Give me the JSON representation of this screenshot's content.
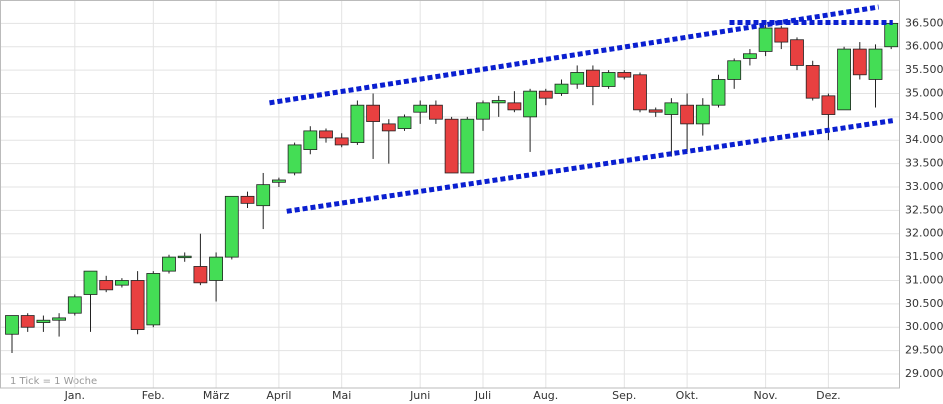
{
  "chart_data": {
    "type": "candlestick",
    "note": "1 Tick = 1 Woche",
    "categories": [
      null,
      null,
      null,
      null,
      "Jan.",
      null,
      null,
      null,
      null,
      "Feb.",
      null,
      null,
      null,
      "März",
      null,
      null,
      null,
      "April",
      null,
      null,
      null,
      "Mai",
      null,
      null,
      null,
      null,
      "Juni",
      null,
      null,
      null,
      "Juli",
      null,
      null,
      null,
      "Aug.",
      null,
      null,
      null,
      null,
      "Sep.",
      null,
      null,
      null,
      "Okt.",
      null,
      null,
      null,
      null,
      "Nov.",
      null,
      null,
      null,
      "Dez.",
      null,
      null,
      null,
      null
    ],
    "series": [
      {
        "name": "open",
        "values": [
          29850,
          30250,
          30100,
          30150,
          30300,
          30700,
          31000,
          30900,
          31000,
          30050,
          31200,
          31500,
          31300,
          31000,
          31500,
          32800,
          32600,
          33100,
          33300,
          33800,
          34200,
          34050,
          33950,
          34750,
          34350,
          34250,
          34600,
          34750,
          34450,
          33300,
          34450,
          34800,
          34800,
          34500,
          35050,
          35000,
          35200,
          35500,
          35150,
          35450,
          35400,
          34650,
          34550,
          34750,
          34350,
          34750,
          35300,
          35750,
          35900,
          36400,
          36150,
          35600,
          34950,
          34650,
          35950,
          35300,
          36000
        ]
      },
      {
        "name": "high",
        "values": [
          30250,
          30300,
          30250,
          30300,
          30700,
          31200,
          31100,
          31050,
          31200,
          31200,
          31550,
          31600,
          32000,
          31600,
          32800,
          32900,
          33300,
          33200,
          33950,
          34300,
          34250,
          34150,
          34850,
          35000,
          34450,
          34550,
          34850,
          34850,
          34500,
          34500,
          34850,
          34950,
          35050,
          35100,
          35100,
          35300,
          35600,
          35600,
          35500,
          35500,
          35450,
          34700,
          34900,
          35000,
          34900,
          35400,
          35750,
          35950,
          36500,
          36450,
          36200,
          35700,
          35000,
          36000,
          36100,
          36050,
          36500
        ]
      },
      {
        "name": "low",
        "values": [
          29450,
          29900,
          29900,
          29800,
          30250,
          29900,
          30750,
          30850,
          29850,
          30000,
          31150,
          31400,
          30900,
          30550,
          31450,
          32550,
          32100,
          33000,
          33250,
          33700,
          33950,
          33850,
          33900,
          33600,
          33500,
          34200,
          34350,
          34350,
          33300,
          33300,
          34200,
          34500,
          34600,
          33750,
          34750,
          34950,
          35100,
          34750,
          35100,
          35300,
          34600,
          34500,
          33650,
          33750,
          34100,
          34700,
          35100,
          35600,
          35800,
          35950,
          35500,
          34850,
          34000,
          34650,
          35300,
          34700,
          35950
        ]
      },
      {
        "name": "close",
        "values": [
          30250,
          30000,
          30150,
          30200,
          30650,
          31200,
          30800,
          31000,
          29950,
          31150,
          31500,
          31520,
          30950,
          31500,
          32800,
          32650,
          33050,
          33150,
          33900,
          34200,
          34050,
          33900,
          34750,
          34400,
          34200,
          34500,
          34750,
          34450,
          33300,
          34450,
          34800,
          34850,
          34650,
          35050,
          34900,
          35200,
          35450,
          35150,
          35450,
          35350,
          34650,
          34600,
          34800,
          34350,
          34750,
          35300,
          35700,
          35850,
          36400,
          36100,
          35600,
          34900,
          34550,
          35950,
          35400,
          35950,
          36500
        ]
      }
    ],
    "up_color": "#44dd55",
    "down_color": "#e84040",
    "trendlines": [
      {
        "x": [
          16.4,
          55.2
        ],
        "values": [
          34800,
          36850
        ],
        "color": "#0a1fd0"
      },
      {
        "x": [
          17.5,
          56.1
        ],
        "values": [
          32480,
          34420
        ],
        "color": "#0a1fd0"
      },
      {
        "x": [
          45.7,
          56.1
        ],
        "values": [
          36520,
          36520
        ],
        "color": "#0a1fd0"
      }
    ],
    "ylim": [
      28700,
      37000
    ],
    "yticks": [
      {
        "value": 29000,
        "label": "29.000"
      },
      {
        "value": 29500,
        "label": "29.500"
      },
      {
        "value": 30000,
        "label": "30.000"
      },
      {
        "value": 30500,
        "label": "30.500"
      },
      {
        "value": 31000,
        "label": "31.000"
      },
      {
        "value": 31500,
        "label": "31.500"
      },
      {
        "value": 32000,
        "label": "32.000"
      },
      {
        "value": 32500,
        "label": "32.500"
      },
      {
        "value": 33000,
        "label": "33.000"
      },
      {
        "value": 33500,
        "label": "33.500"
      },
      {
        "value": 34000,
        "label": "34.000"
      },
      {
        "value": 34500,
        "label": "34.500"
      },
      {
        "value": 35000,
        "label": "35.000"
      },
      {
        "value": 35500,
        "label": "35.500"
      },
      {
        "value": 36000,
        "label": "36.000"
      },
      {
        "value": 36500,
        "label": "36.500"
      }
    ],
    "grid": true
  }
}
